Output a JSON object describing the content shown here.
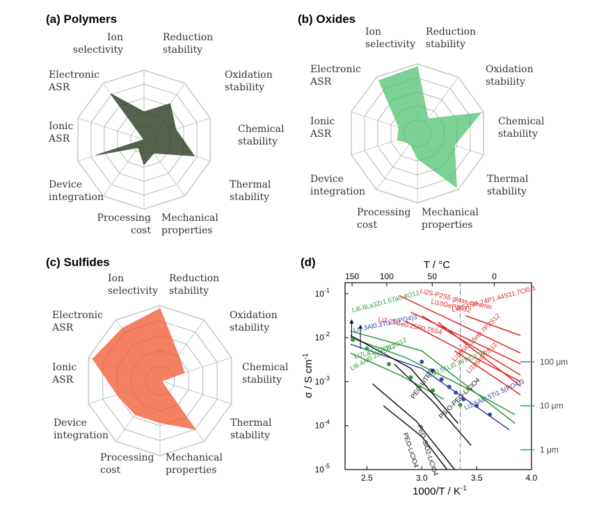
{
  "panels": {
    "a_title": "(a) Polymers",
    "b_title": "(b) Oxides",
    "c_title": "(c) Sulfides",
    "d_title": "(d)"
  },
  "colors": {
    "polymers": "#4b5a44",
    "oxides": "#74cf90",
    "sulfides": "#f4795a",
    "grid": "#c9c9c9",
    "red_series": "#d9261c",
    "green_series": "#2b9a36",
    "blue_series": "#2f48a8",
    "black_series": "#111111",
    "scale_marker": "#2a9a9a"
  },
  "chart_data": [
    {
      "type": "radar",
      "title": "(a) Polymers",
      "axes": [
        "Ion selectivity",
        "Reduction stability",
        "Oxidation stability",
        "Chemical stability",
        "Thermal stability",
        "Mechanical properties",
        "Processing cost",
        "Device integration",
        "Ionic ASR",
        "Electronic ASR"
      ],
      "values": [
        2.0,
        3.2,
        2.4,
        3.8,
        1.2,
        1.8,
        0.7,
        3.6,
        0.0,
        4.1
      ],
      "max": 5
    },
    {
      "type": "radar",
      "title": "(b) Oxides",
      "axes": [
        "Ion selectivity",
        "Reduction stability",
        "Oxidation stability",
        "Chemical stability",
        "Thermal stability",
        "Mechanical properties",
        "Processing cost",
        "Device integration",
        "Ionic ASR",
        "Electronic ASR"
      ],
      "values": [
        4.8,
        1.3,
        4.8,
        2.8,
        4.8,
        1.8,
        0.9,
        1.5,
        1.4,
        4.7
      ],
      "max": 5
    },
    {
      "type": "radar",
      "title": "(c) Sulfides",
      "axes": [
        "Ion selectivity",
        "Reduction stability",
        "Oxidation stability",
        "Chemical stability",
        "Thermal stability",
        "Mechanical properties",
        "Processing cost",
        "Device integration",
        "Ionic ASR",
        "Electronic ASR"
      ],
      "values": [
        4.8,
        2.1,
        1.7,
        0.1,
        4.0,
        2.8,
        2.8,
        3.0,
        4.7,
        4.3
      ],
      "max": 5
    },
    {
      "type": "line",
      "title": "(d)",
      "xlabel": "1000/T / K",
      "xlabel_sup": "-1",
      "ylabel": "σ / S cm",
      "ylabel_sup": "-1",
      "top_axis_label": "T / °C",
      "xlim": [
        2.3,
        4.0
      ],
      "ylim": [
        -5,
        -0.75
      ],
      "y_scale": "log",
      "x_ticks": [
        "2.5",
        "3.0",
        "3.5",
        "4.0"
      ],
      "y_ticks": [
        {
          "base": "10",
          "exp": "-1",
          "v": -1
        },
        {
          "base": "10",
          "exp": "-2",
          "v": -2
        },
        {
          "base": "10",
          "exp": "-3",
          "v": -3
        },
        {
          "base": "10",
          "exp": "-4",
          "v": -4
        },
        {
          "base": "10",
          "exp": "-5",
          "v": -5
        }
      ],
      "top_ticks": [
        {
          "label": "150",
          "x": 2.364
        },
        {
          "label": "100",
          "x": 2.68
        },
        {
          "label": "50",
          "x": 3.095
        },
        {
          "label": "0",
          "x": 3.661
        }
      ],
      "thickness_scale": [
        {
          "label": "100 μm",
          "logsigma": -2.55
        },
        {
          "label": "10 μm",
          "logsigma": -3.55
        },
        {
          "label": "1 μm",
          "logsigma": -4.55
        }
      ],
      "reference_x": 3.35,
      "series": [
        {
          "group": "red",
          "x": [
            2.8,
            3.9
          ],
          "logsigma": [
            -1.05,
            -2.35
          ]
        },
        {
          "group": "red",
          "x": [
            2.9,
            3.9
          ],
          "logsigma": [
            -1.42,
            -2.6
          ]
        },
        {
          "group": "red",
          "x": [
            2.85,
            3.9
          ],
          "logsigma": [
            -1.62,
            -3.0
          ]
        },
        {
          "group": "red",
          "x": [
            3.0,
            3.9
          ],
          "logsigma": [
            -1.5,
            -2.85
          ]
        },
        {
          "group": "red",
          "x": [
            3.15,
            3.9
          ],
          "logsigma": [
            -1.65,
            -3.1
          ]
        },
        {
          "group": "red",
          "x": [
            3.3,
            3.9
          ],
          "logsigma": [
            -2.3,
            -3.3
          ]
        },
        {
          "group": "red",
          "x": [
            3.4,
            3.9
          ],
          "logsigma": [
            -1.5,
            -1.95
          ]
        },
        {
          "group": "green",
          "x": [
            2.35,
            3.0,
            3.85
          ],
          "logsigma": [
            -1.85,
            -2.3,
            -3.95
          ]
        },
        {
          "group": "green",
          "x": [
            2.35,
            2.85,
            3.45,
            3.85
          ],
          "logsigma": [
            -2.0,
            -2.45,
            -3.2,
            -3.75
          ]
        },
        {
          "group": "green",
          "x": [
            2.35,
            2.8,
            3.2
          ],
          "logsigma": [
            -2.35,
            -2.85,
            -3.4
          ]
        },
        {
          "group": "blue",
          "x": [
            2.35,
            3.0,
            3.8
          ],
          "logsigma": [
            -2.15,
            -2.7,
            -4.1
          ]
        },
        {
          "group": "black",
          "x": [
            2.35,
            2.9,
            3.33
          ],
          "logsigma": [
            -1.95,
            -2.7,
            -3.95
          ]
        },
        {
          "group": "black",
          "x": [
            2.75,
            3.1,
            3.45
          ],
          "logsigma": [
            -2.6,
            -3.45,
            -4.45
          ]
        },
        {
          "group": "black",
          "x": [
            2.55,
            2.95,
            3.3
          ],
          "logsigma": [
            -3.05,
            -3.9,
            -5.0
          ]
        },
        {
          "group": "black",
          "x": [
            2.65,
            3.0,
            3.23
          ],
          "logsigma": [
            -3.55,
            -4.25,
            -5.0
          ]
        }
      ],
      "markers": [
        {
          "group": "green",
          "x": [
            2.37,
            2.5,
            2.7,
            2.9,
            3.1,
            3.35
          ],
          "logsigma": [
            -2.05,
            -2.25,
            -2.6,
            -2.9,
            -3.2,
            -3.53
          ]
        },
        {
          "group": "blue",
          "x": [
            3.0,
            3.1,
            3.18,
            3.25,
            3.31,
            3.38,
            3.5,
            3.62
          ],
          "logsigma": [
            -2.55,
            -2.75,
            -2.95,
            -3.12,
            -3.25,
            -3.4,
            -3.55,
            -3.75
          ]
        }
      ],
      "labels": [
        {
          "group": "red",
          "text": "Li2S-P2S5 glass-ceramic",
          "x": 2.98,
          "logsigma": -0.98,
          "rot": 13
        },
        {
          "group": "red",
          "text": "Li10GeP2S12",
          "x": 3.08,
          "logsigma": -1.22,
          "rot": 13
        },
        {
          "group": "red",
          "text": "Li3.25Ge0.25P0.75S4",
          "x": 2.6,
          "logsigma": -1.62,
          "rot": 12
        },
        {
          "group": "red",
          "text": "Li9.54Si1.74P1.44S11.7Cl0.3",
          "x": 3.28,
          "logsigma": -1.42,
          "rot": -15
        },
        {
          "group": "red",
          "text": "Li10Si0.3Sn0.7P2S12",
          "x": 3.3,
          "logsigma": -2.55,
          "rot": -45
        },
        {
          "group": "red",
          "text": "Li10SnP2S12",
          "x": 3.43,
          "logsigma": -2.82,
          "rot": -45
        },
        {
          "group": "green",
          "text": "Li6.6La3Zr1.6Ta0.4O12",
          "x": 2.37,
          "logsigma": -1.43,
          "rot": -15
        },
        {
          "group": "green",
          "text": "Li7La3Zr2O12",
          "x": 2.39,
          "logsigma": -2.48,
          "rot": -15
        },
        {
          "group": "green",
          "text": "Li6.4Al0.2La3Zr2O12",
          "x": 2.36,
          "logsigma": -2.75,
          "rot": -28
        },
        {
          "group": "green",
          "text": "La0.51Li0.34TiO2.94",
          "x": 3.07,
          "logsigma": -2.9,
          "rot": -22
        },
        {
          "group": "blue",
          "text": "Li1.3Al0.3Ti1.7(PO4)3",
          "x": 2.38,
          "logsigma": -1.88,
          "rot": -12
        },
        {
          "group": "blue",
          "text": "Li1.5Al0.5Ti1.5(PO4)3",
          "x": 3.4,
          "logsigma": -3.65,
          "rot": -25
        },
        {
          "group": "black",
          "text": "PEO-LiTFSI",
          "x": 2.93,
          "logsigma": -3.4,
          "rot": -55
        },
        {
          "group": "black",
          "text": "PS(O-PEO-LiClO4",
          "x": 3.18,
          "logsigma": -3.85,
          "rot": -45
        },
        {
          "group": "black",
          "text": "PEO-SiO2-LiClO4",
          "x": 2.96,
          "logsigma": -4.0,
          "rot": 72
        },
        {
          "group": "black",
          "text": "PEO-LiClO4",
          "x": 2.83,
          "logsigma": -4.18,
          "rot": 72
        }
      ]
    }
  ]
}
